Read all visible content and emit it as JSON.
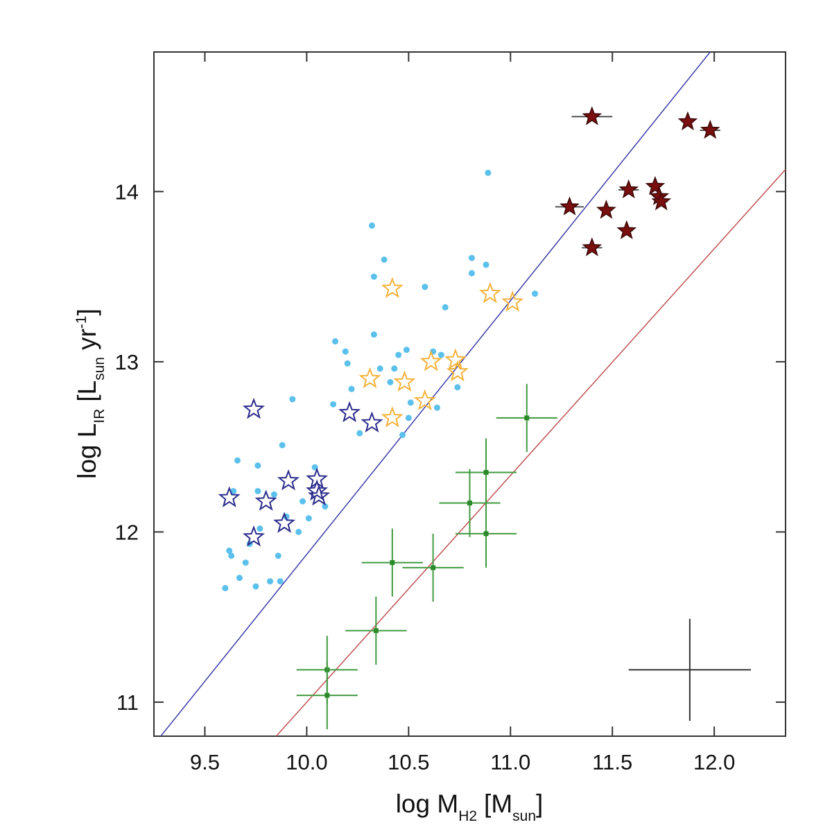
{
  "chart_data": {
    "type": "scatter",
    "xlabel_parts": [
      "log M",
      "H2",
      "[M",
      "sun",
      "]"
    ],
    "ylabel_parts": [
      "log L",
      "IR",
      "[L",
      "sun",
      "yr",
      "-1",
      "]"
    ],
    "xlim": [
      9.25,
      12.35
    ],
    "ylim": [
      10.8,
      14.82
    ],
    "xticks": [
      {
        "value": 9.5,
        "label": "9.5"
      },
      {
        "value": 10,
        "label": "10.0"
      },
      {
        "value": 10.5,
        "label": "10.5"
      },
      {
        "value": 11,
        "label": "11.0"
      },
      {
        "value": 11.5,
        "label": "11.5"
      },
      {
        "value": 12,
        "label": "12.0"
      }
    ],
    "yticks": [
      11,
      12,
      13,
      14
    ],
    "series": [
      {
        "marker": "dot",
        "color": "#5bc0eb",
        "x": [
          9.6,
          9.62,
          9.63,
          9.64,
          9.66,
          9.67,
          9.7,
          9.72,
          9.75,
          9.76,
          9.76,
          9.77,
          9.82,
          9.84,
          9.86,
          9.87,
          9.88,
          9.9,
          9.93,
          9.96,
          9.98,
          10.01,
          10.04,
          10.09,
          10.13,
          10.14,
          10.19,
          10.2,
          10.22,
          10.26,
          10.32,
          10.33,
          10.33,
          10.36,
          10.38,
          10.41,
          10.43,
          10.45,
          10.47,
          10.49,
          10.5,
          10.51,
          10.58,
          10.64,
          10.62,
          10.66,
          10.68,
          10.74,
          10.81,
          10.81,
          10.88,
          10.89,
          11.12
        ],
        "values": [
          11.67,
          11.89,
          11.86,
          12.24,
          12.42,
          11.73,
          11.82,
          11.93,
          11.68,
          12.39,
          12.24,
          12.02,
          11.71,
          12.22,
          11.86,
          11.71,
          12.51,
          12.09,
          12.78,
          12.0,
          12.18,
          12.08,
          12.38,
          12.15,
          12.75,
          13.12,
          13.06,
          12.99,
          12.84,
          12.58,
          13.8,
          13.16,
          13.5,
          12.96,
          13.6,
          12.88,
          12.96,
          13.04,
          12.57,
          13.07,
          12.67,
          12.76,
          13.44,
          12.73,
          13.06,
          13.04,
          13.32,
          12.85,
          13.61,
          13.52,
          13.57,
          14.11,
          13.4
        ]
      },
      {
        "marker": "star-open",
        "color": "#f5b23a",
        "x": [
          10.42,
          10.31,
          10.48,
          10.61,
          10.58,
          10.42,
          10.73,
          10.74,
          10.9,
          11.01
        ],
        "values": [
          13.43,
          12.9,
          12.88,
          13.0,
          12.77,
          12.67,
          13.01,
          12.94,
          13.4,
          13.35
        ]
      },
      {
        "marker": "star-open",
        "color": "#2b2b8c",
        "x": [
          9.74,
          9.62,
          9.8,
          9.74,
          9.91,
          9.89,
          10.05,
          10.05,
          10.06,
          10.21,
          10.32
        ],
        "values": [
          12.72,
          12.2,
          12.18,
          11.97,
          12.3,
          12.05,
          12.31,
          12.24,
          12.21,
          12.7,
          12.64
        ]
      },
      {
        "marker": "star-filled",
        "color": "#7a0f0f",
        "err_color": "#555",
        "x": [
          11.4,
          11.87,
          11.98,
          11.29,
          11.47,
          11.58,
          11.71,
          11.73,
          11.74,
          11.57,
          11.4
        ],
        "values": [
          14.44,
          14.41,
          14.36,
          13.91,
          13.89,
          14.01,
          14.03,
          13.97,
          13.94,
          13.77,
          13.67
        ],
        "xerr": [
          0.1,
          0.03,
          0.05,
          0.07,
          0.03,
          0.05,
          0.03,
          0.03,
          0.03,
          0.03,
          0.05
        ]
      },
      {
        "marker": "square",
        "color": "#2a8a2a",
        "err_color": "#3f9a3f",
        "x": [
          10.1,
          10.1,
          10.34,
          10.42,
          10.62,
          10.8,
          10.88,
          10.88,
          11.08
        ],
        "values": [
          11.19,
          11.04,
          11.42,
          11.82,
          11.79,
          12.17,
          12.35,
          11.99,
          12.67
        ],
        "xerr": [
          0.15,
          0.15,
          0.15,
          0.15,
          0.15,
          0.15,
          0.15,
          0.15,
          0.15
        ],
        "yerr": [
          0.2,
          0.2,
          0.2,
          0.2,
          0.2,
          0.2,
          0.2,
          0.2,
          0.2
        ]
      }
    ],
    "lines": [
      {
        "color": "#3a3aa8",
        "x": [
          9.25,
          11.98
        ],
        "values": [
          10.75,
          14.82
        ]
      },
      {
        "color": "#c05050",
        "x": [
          9.85,
          12.35
        ],
        "values": [
          10.8,
          14.13
        ]
      }
    ],
    "reference_error": {
      "color": "#333",
      "x": 11.88,
      "y": 11.19,
      "xerr": 0.3,
      "yerr": 0.3
    }
  }
}
